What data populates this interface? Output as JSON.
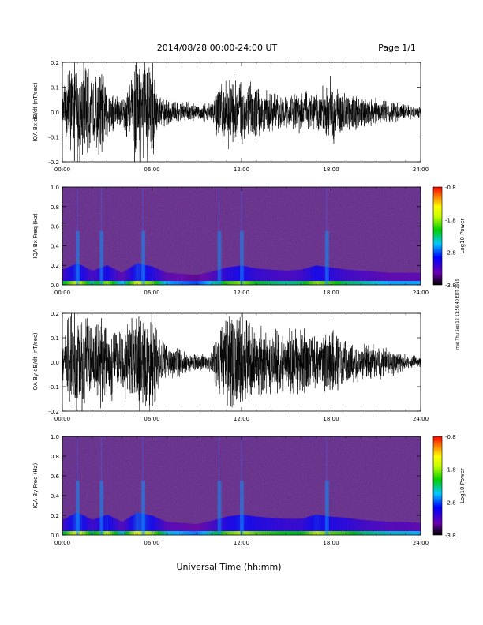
{
  "header": {
    "title": "2014/08/28  00:00-24:00 UT",
    "page": "Page 1/1"
  },
  "footer": {
    "xlabel": "Universal Time (hh:mm)"
  },
  "side_note": "mat Thu Sep 12 11:56:40 EDT 2019",
  "colors": {
    "trace": "#000000",
    "spectrogram_background": "#2a0a45",
    "colormap": [
      "#000000",
      "#6a00b0",
      "#0000ff",
      "#00c8ff",
      "#00d000",
      "#c8ff00",
      "#ffff00",
      "#ff8000",
      "#ff0000"
    ]
  },
  "chart_data": [
    {
      "type": "line",
      "ylabel": "IQA Bx dB/dt (nT/sec)",
      "xlim": [
        0,
        24
      ],
      "ylim": [
        -0.2,
        0.2
      ],
      "xticks": [
        "00:00",
        "06:00",
        "12:00",
        "18:00",
        "24:00"
      ],
      "yticks": [
        "-0.2",
        "-0.1",
        "0.0",
        "0.1",
        "0.2"
      ],
      "envelope_hours": [
        0,
        0.5,
        1,
        1.5,
        2,
        2.5,
        3,
        4,
        5,
        5.5,
        6,
        6.5,
        7,
        8,
        9,
        10,
        10.5,
        11,
        11.5,
        12,
        13,
        14,
        15,
        16,
        17,
        18,
        19,
        20,
        21,
        22,
        23,
        24
      ],
      "envelope_amplitude": [
        0.05,
        0.2,
        0.2,
        0.2,
        0.12,
        0.18,
        0.1,
        0.06,
        0.2,
        0.2,
        0.2,
        0.06,
        0.05,
        0.04,
        0.03,
        0.04,
        0.12,
        0.12,
        0.15,
        0.13,
        0.1,
        0.07,
        0.06,
        0.08,
        0.07,
        0.13,
        0.07,
        0.06,
        0.05,
        0.04,
        0.03,
        0.02
      ]
    },
    {
      "type": "heatmap",
      "ylabel": "IQA Bx Freq (Hz)",
      "xlim": [
        0,
        24
      ],
      "ylim": [
        0,
        1
      ],
      "xticks": [
        "00:00",
        "06:00",
        "12:00",
        "18:00",
        "24:00"
      ],
      "yticks": [
        "0.0",
        "0.2",
        "0.4",
        "0.6",
        "0.8",
        "1.0"
      ],
      "colorbar": {
        "label": "Log10 Power",
        "range": [
          -3.8,
          -0.8
        ],
        "ticks": [
          "-0.8",
          "-1.8",
          "-2.8",
          "-3.8"
        ]
      },
      "events_hours": [
        1.0,
        2.6,
        5.4,
        10.5,
        12.0,
        17.7
      ],
      "intensity_hours": [
        0,
        1,
        2,
        3,
        4,
        5,
        6,
        7,
        8,
        9,
        10,
        11,
        12,
        13,
        14,
        15,
        16,
        17,
        18,
        19,
        20,
        21,
        22,
        23,
        24
      ],
      "low_band_log_power": [
        -2.8,
        -2.2,
        -2.9,
        -2.4,
        -3.1,
        -2.2,
        -2.5,
        -3.1,
        -3.2,
        -3.3,
        -3.0,
        -2.6,
        -2.4,
        -2.7,
        -2.8,
        -2.9,
        -2.8,
        -2.4,
        -2.6,
        -2.8,
        -2.9,
        -3.0,
        -3.1,
        -3.1,
        -3.1
      ]
    },
    {
      "type": "line",
      "ylabel": "IQA By dB/dt (nT/sec)",
      "xlim": [
        0,
        24
      ],
      "ylim": [
        -0.2,
        0.2
      ],
      "xticks": [
        "00:00",
        "06:00",
        "12:00",
        "18:00",
        "24:00"
      ],
      "yticks": [
        "-0.2",
        "-0.1",
        "0.0",
        "0.1",
        "0.2"
      ],
      "envelope_hours": [
        0,
        0.5,
        1,
        1.5,
        2,
        2.5,
        3,
        4,
        5,
        5.5,
        6,
        6.5,
        7,
        8,
        9,
        10,
        10.5,
        11,
        11.5,
        12,
        13,
        14,
        15,
        16,
        17,
        18,
        19,
        20,
        21,
        22,
        23,
        24
      ],
      "envelope_amplitude": [
        0.06,
        0.2,
        0.2,
        0.18,
        0.14,
        0.2,
        0.15,
        0.12,
        0.2,
        0.2,
        0.2,
        0.1,
        0.07,
        0.05,
        0.03,
        0.04,
        0.14,
        0.18,
        0.18,
        0.2,
        0.14,
        0.12,
        0.12,
        0.14,
        0.1,
        0.14,
        0.08,
        0.07,
        0.07,
        0.05,
        0.03,
        0.02
      ]
    },
    {
      "type": "heatmap",
      "ylabel": "IQA By Freq (Hz)",
      "xlim": [
        0,
        24
      ],
      "ylim": [
        0,
        1
      ],
      "xticks": [
        "00:00",
        "06:00",
        "12:00",
        "18:00",
        "24:00"
      ],
      "yticks": [
        "0.0",
        "0.2",
        "0.4",
        "0.6",
        "0.8",
        "1.0"
      ],
      "colorbar": {
        "label": "Log10 Power",
        "range": [
          -3.8,
          -0.8
        ],
        "ticks": [
          "-0.8",
          "-1.8",
          "-2.8",
          "-3.8"
        ]
      },
      "events_hours": [
        1.0,
        2.6,
        5.4,
        10.5,
        12.0,
        17.7
      ],
      "intensity_hours": [
        0,
        1,
        2,
        3,
        4,
        5,
        6,
        7,
        8,
        9,
        10,
        11,
        12,
        13,
        14,
        15,
        16,
        17,
        18,
        19,
        20,
        21,
        22,
        23,
        24
      ],
      "low_band_log_power": [
        -2.8,
        -2.1,
        -2.8,
        -2.3,
        -3.0,
        -2.1,
        -2.4,
        -3.0,
        -3.1,
        -3.2,
        -2.9,
        -2.5,
        -2.3,
        -2.5,
        -2.6,
        -2.7,
        -2.7,
        -2.3,
        -2.5,
        -2.6,
        -2.8,
        -2.9,
        -3.0,
        -3.0,
        -3.1
      ]
    }
  ]
}
